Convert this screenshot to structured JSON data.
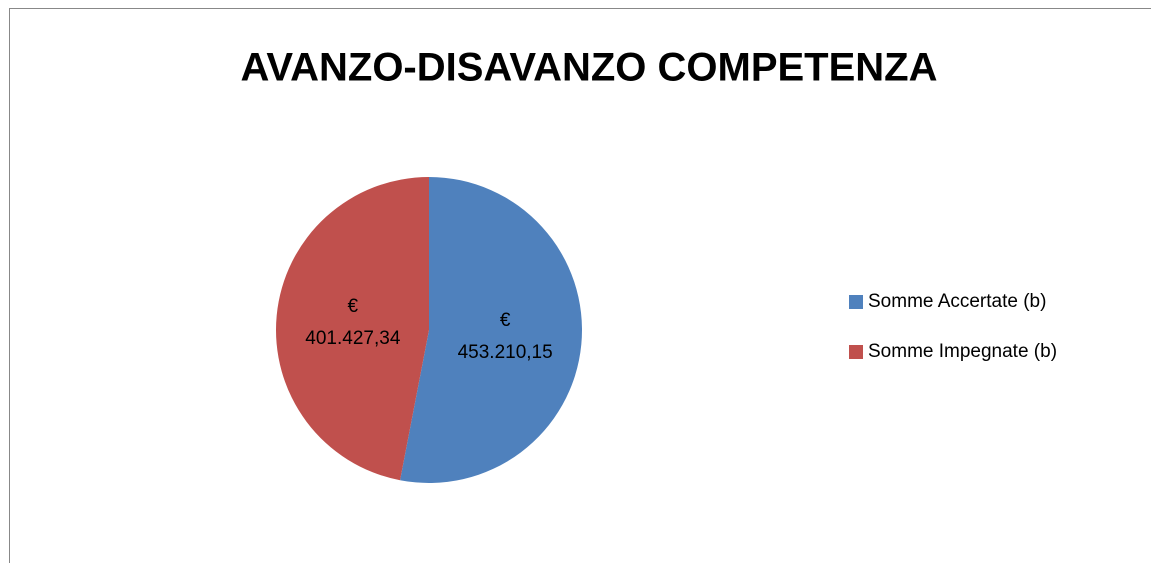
{
  "chart_data": {
    "type": "pie",
    "title": "AVANZO-DISAVANZO COMPETENZA",
    "categories": [
      "Somme Accertate (b)",
      "Somme Impegnate (b)"
    ],
    "values": [
      453210.15,
      401427.34
    ],
    "value_labels": [
      "€ 453.210,15",
      "€ 401.427,34"
    ],
    "colors": [
      "#4f81bd",
      "#c0504d"
    ],
    "legend": "right"
  }
}
